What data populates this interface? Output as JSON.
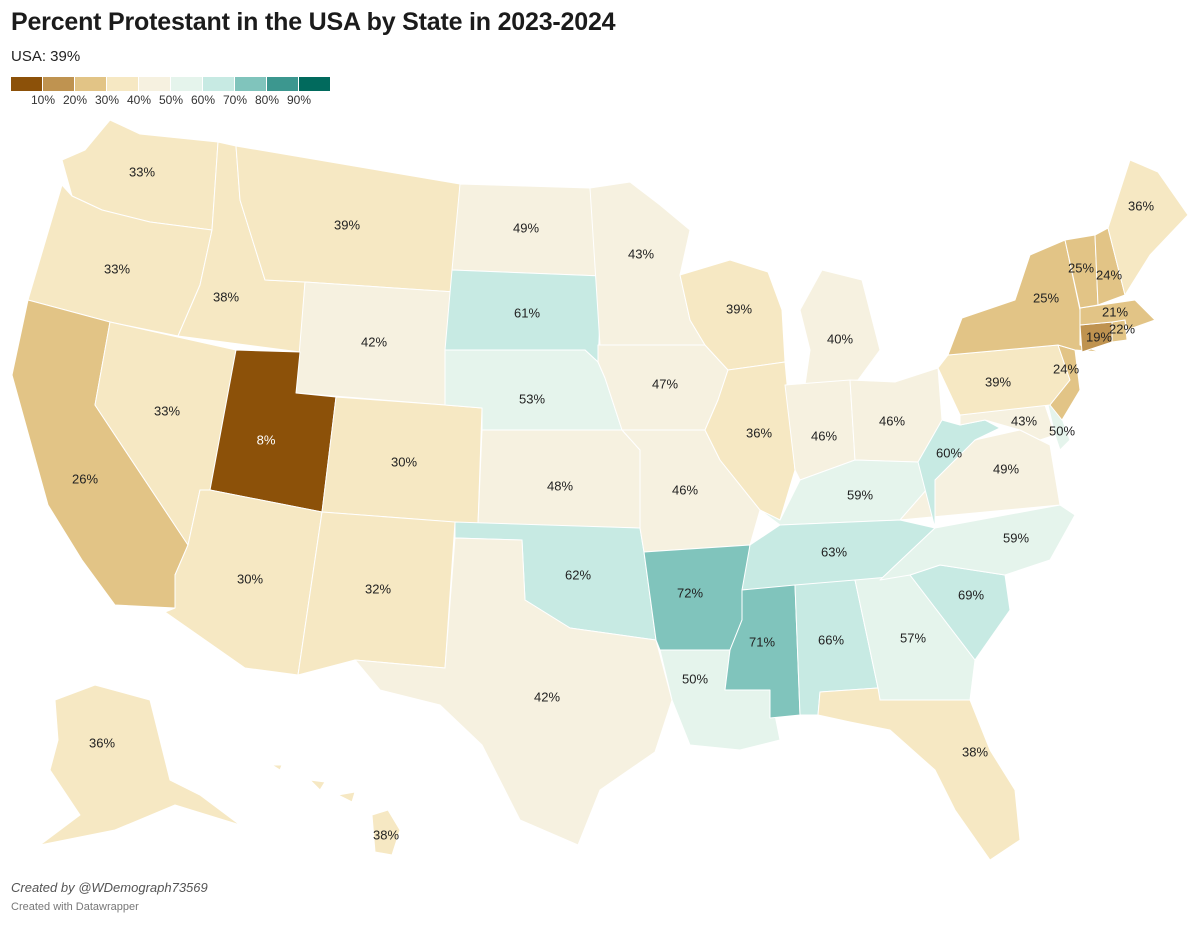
{
  "title": "Percent Protestant in the USA by State in 2023-2024",
  "subtitle": "USA: 39%",
  "legend": {
    "colors": [
      "#8c5109",
      "#bf9350",
      "#e2c486",
      "#f6e8c3",
      "#f6f1e0",
      "#e5f4ec",
      "#c7eae3",
      "#80c4bc",
      "#3c978f",
      "#016a5d"
    ],
    "labels": [
      "10%",
      "20%",
      "30%",
      "40%",
      "50%",
      "60%",
      "70%",
      "80%",
      "90%"
    ]
  },
  "states": {
    "WA": {
      "value": 33,
      "label": "33%"
    },
    "OR": {
      "value": 33,
      "label": "33%"
    },
    "CA": {
      "value": 26,
      "label": "26%"
    },
    "NV": {
      "value": 33,
      "label": "33%"
    },
    "ID": {
      "value": 38,
      "label": "38%"
    },
    "MT": {
      "value": 39,
      "label": "39%"
    },
    "WY": {
      "value": 42,
      "label": "42%"
    },
    "UT": {
      "value": 8,
      "label": "8%"
    },
    "CO": {
      "value": 30,
      "label": "30%"
    },
    "AZ": {
      "value": 30,
      "label": "30%"
    },
    "NM": {
      "value": 32,
      "label": "32%"
    },
    "ND": {
      "value": 49,
      "label": "49%"
    },
    "SD": {
      "value": 61,
      "label": "61%"
    },
    "NE": {
      "value": 53,
      "label": "53%"
    },
    "KS": {
      "value": 48,
      "label": "48%"
    },
    "OK": {
      "value": 62,
      "label": "62%"
    },
    "TX": {
      "value": 42,
      "label": "42%"
    },
    "MN": {
      "value": 43,
      "label": "43%"
    },
    "IA": {
      "value": 47,
      "label": "47%"
    },
    "MO": {
      "value": 46,
      "label": "46%"
    },
    "AR": {
      "value": 72,
      "label": "72%"
    },
    "LA": {
      "value": 50,
      "label": "50%"
    },
    "WI": {
      "value": 39,
      "label": "39%"
    },
    "IL": {
      "value": 36,
      "label": "36%"
    },
    "MI": {
      "value": 40,
      "label": "40%"
    },
    "IN": {
      "value": 46,
      "label": "46%"
    },
    "OH": {
      "value": 46,
      "label": "46%"
    },
    "KY": {
      "value": 59,
      "label": "59%"
    },
    "TN": {
      "value": 63,
      "label": "63%"
    },
    "MS": {
      "value": 71,
      "label": "71%"
    },
    "AL": {
      "value": 66,
      "label": "66%"
    },
    "GA": {
      "value": 57,
      "label": "57%"
    },
    "FL": {
      "value": 38,
      "label": "38%"
    },
    "SC": {
      "value": 69,
      "label": "69%"
    },
    "NC": {
      "value": 59,
      "label": "59%"
    },
    "VA": {
      "value": 49,
      "label": "49%"
    },
    "WV": {
      "value": 60,
      "label": "60%"
    },
    "MD": {
      "value": 43,
      "label": "43%"
    },
    "DE": {
      "value": 50,
      "label": "50%"
    },
    "PA": {
      "value": 39,
      "label": "39%"
    },
    "NJ": {
      "value": 24,
      "label": "24%"
    },
    "NY": {
      "value": 25,
      "label": "25%"
    },
    "CT": {
      "value": 19,
      "label": "19%"
    },
    "RI": {
      "value": 22,
      "label": "22%"
    },
    "MA": {
      "value": 21,
      "label": "21%"
    },
    "VT": {
      "value": 25,
      "label": "25%"
    },
    "NH": {
      "value": 24,
      "label": "24%"
    },
    "ME": {
      "value": 36,
      "label": "36%"
    },
    "AK": {
      "value": 36,
      "label": "36%"
    },
    "HI": {
      "value": 38,
      "label": "38%"
    }
  },
  "credit": "Created by @WDemograph73569",
  "made_with": "Created with Datawrapper"
}
